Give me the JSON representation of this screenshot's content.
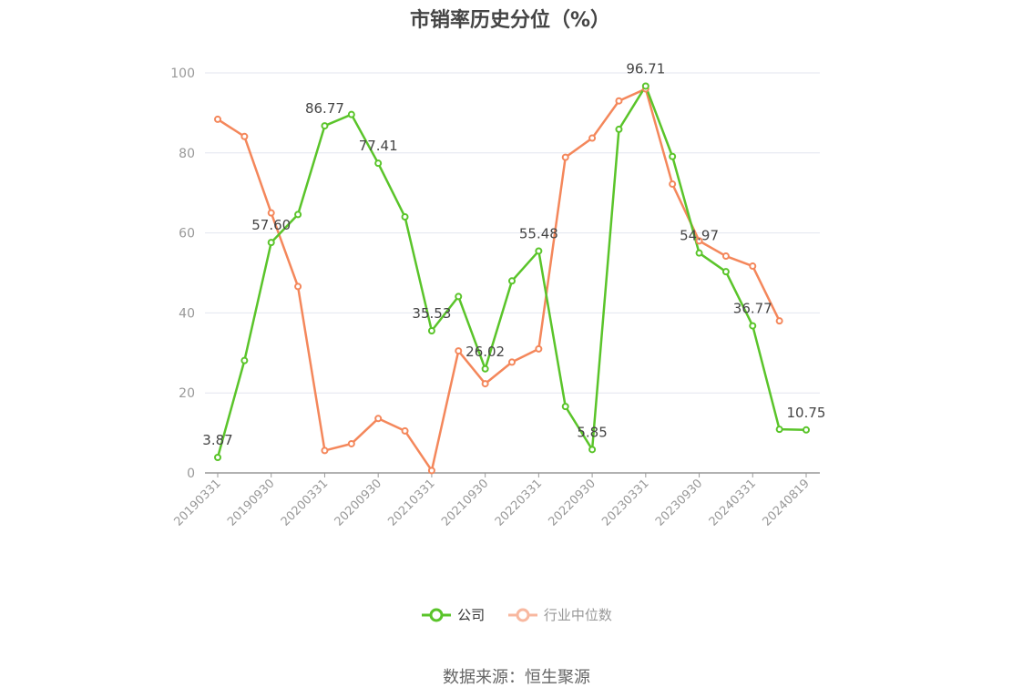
{
  "title": "市销率历史分位（%）",
  "source_text": "数据来源：恒生聚源",
  "legend": [
    {
      "label": "公司",
      "color": "#5ac42a"
    },
    {
      "label": "行业中位数",
      "color": "#f4875b"
    }
  ],
  "chart_data": {
    "type": "line",
    "title": "市销率历史分位（%）",
    "xlabel": "",
    "ylabel": "",
    "ylim": [
      0,
      100
    ],
    "yticks": [
      0,
      20,
      40,
      60,
      80,
      100
    ],
    "x_tick_labels": [
      "20190331",
      "20190930",
      "20200331",
      "20200930",
      "20210331",
      "20210930",
      "20220331",
      "20220930",
      "20230331",
      "20230930",
      "20240331",
      "20240819"
    ],
    "x": [
      "20190331",
      "20190630",
      "20190930",
      "20191231",
      "20200331",
      "20200630",
      "20200930",
      "20201231",
      "20210331",
      "20210630",
      "20210930",
      "20211231",
      "20220331",
      "20220630",
      "20220930",
      "20221231",
      "20230331",
      "20230630",
      "20230930",
      "20231231",
      "20240331",
      "20240630",
      "20240819"
    ],
    "grid": true,
    "legend_position": "bottom",
    "series": [
      {
        "name": "公司",
        "color": "#5ac42a",
        "values": [
          3.87,
          28.1,
          57.6,
          64.6,
          86.77,
          89.6,
          77.41,
          64.0,
          35.53,
          44.1,
          26.02,
          48.0,
          55.48,
          16.6,
          5.85,
          85.9,
          96.71,
          79.1,
          54.97,
          50.3,
          36.77,
          10.9,
          10.75
        ],
        "labels": {
          "0": "3.87",
          "2": "57.60",
          "4": "86.77",
          "6": "77.41",
          "8": "35.53",
          "10": "26.02",
          "12": "55.48",
          "14": "5.85",
          "16": "96.71",
          "18": "54.97",
          "20": "36.77",
          "22": "10.75"
        }
      },
      {
        "name": "行业中位数",
        "color": "#f4875b",
        "values": [
          88.4,
          84.1,
          65.0,
          46.6,
          5.6,
          7.3,
          13.6,
          10.5,
          0.6,
          30.5,
          22.3,
          27.7,
          31.0,
          78.9,
          83.7,
          93.0,
          96.0,
          72.2,
          58.0,
          54.2,
          51.7,
          38.0,
          null
        ]
      }
    ]
  }
}
